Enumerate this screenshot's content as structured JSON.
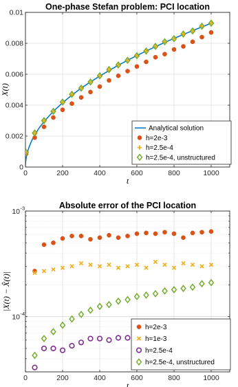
{
  "chart_data": [
    {
      "type": "scatter",
      "title": "One-phase Stefan problem: PCI location",
      "xlabel": "t",
      "ylabel": "X(t)",
      "xlim": [
        0,
        1100
      ],
      "ylim": [
        0,
        0.01
      ],
      "xticks": [
        "0",
        "200",
        "400",
        "600",
        "800",
        "1000"
      ],
      "yticks": [
        "0",
        "0.002",
        "0.004",
        "0.006",
        "0.008",
        "0.01"
      ],
      "grid": true,
      "legend_position": "bottom-right",
      "series": [
        {
          "name": "Analytical solution",
          "kind": "line",
          "color": "#0072BD",
          "x": [
            0,
            1,
            3,
            6,
            10,
            20,
            35,
            50,
            75,
            100,
            150,
            200,
            250,
            300,
            350,
            400,
            450,
            500,
            550,
            600,
            650,
            700,
            750,
            800,
            850,
            900,
            950,
            1000,
            1010
          ],
          "y": [
            0,
            0.000295,
            0.00051,
            0.00072,
            0.00093,
            0.00131,
            0.00174,
            0.00208,
            0.00255,
            0.00294,
            0.0036,
            0.00416,
            0.00465,
            0.0051,
            0.0055,
            0.00588,
            0.00624,
            0.00658,
            0.0069,
            0.00721,
            0.0075,
            0.00778,
            0.00806,
            0.00832,
            0.00857,
            0.00882,
            0.00906,
            0.0093,
            0.00934
          ]
        },
        {
          "name": "h=2e-3",
          "marker": "circle-filled",
          "color": "#D95319",
          "x": [
            3,
            50,
            100,
            150,
            200,
            250,
            300,
            350,
            400,
            450,
            500,
            550,
            600,
            650,
            700,
            750,
            800,
            850,
            900,
            950,
            1000
          ],
          "y": [
            0.00085,
            0.0019,
            0.0026,
            0.0032,
            0.0037,
            0.0041,
            0.0045,
            0.00485,
            0.0052,
            0.0056,
            0.0059,
            0.0062,
            0.0065,
            0.0068,
            0.0071,
            0.0073,
            0.0076,
            0.0078,
            0.0081,
            0.0084,
            0.0087
          ]
        },
        {
          "name": "h=2.5e-4",
          "marker": "plus",
          "color": "#EDB120",
          "x": [
            3,
            50,
            100,
            150,
            200,
            250,
            300,
            350,
            400,
            450,
            500,
            550,
            600,
            650,
            700,
            750,
            800,
            850,
            900,
            950,
            1000
          ],
          "y": [
            0.00095,
            0.0022,
            0.003,
            0.0036,
            0.0042,
            0.0047,
            0.0051,
            0.0055,
            0.0059,
            0.0063,
            0.0066,
            0.0069,
            0.0072,
            0.0075,
            0.0078,
            0.0081,
            0.0083,
            0.0086,
            0.0088,
            0.0091,
            0.0093
          ]
        },
        {
          "name": "h=2.5e-4, unstructured",
          "marker": "diamond-open",
          "color": "#77AC30",
          "x": [
            3,
            50,
            100,
            150,
            200,
            250,
            300,
            350,
            400,
            450,
            500,
            550,
            600,
            650,
            700,
            750,
            800,
            850,
            900,
            950,
            1000
          ],
          "y": [
            0.00095,
            0.0022,
            0.003,
            0.0036,
            0.0042,
            0.0047,
            0.0051,
            0.0055,
            0.0059,
            0.0063,
            0.0066,
            0.0069,
            0.0072,
            0.0075,
            0.0078,
            0.0081,
            0.0083,
            0.0086,
            0.0088,
            0.0091,
            0.0093
          ]
        }
      ]
    },
    {
      "type": "scatter",
      "title": "Absolute error of the PCI location",
      "xlabel": "t",
      "ylabel": "|X(t) − X̂(t)|",
      "xlim": [
        0,
        1100
      ],
      "ylim": [
        3e-05,
        0.001
      ],
      "yscale": "log",
      "xticks": [
        "0",
        "200",
        "400",
        "600",
        "800",
        "1000"
      ],
      "yticks": [
        {
          "base": "10",
          "exp": "-4",
          "value": 0.0001
        },
        {
          "base": "10",
          "exp": "-3",
          "value": 0.001
        }
      ],
      "grid": true,
      "legend_position": "bottom-right",
      "series": [
        {
          "name": "h=2e-3",
          "marker": "circle-filled",
          "color": "#D95319",
          "x": [
            50,
            100,
            150,
            200,
            250,
            300,
            350,
            400,
            450,
            500,
            550,
            600,
            650,
            700,
            750,
            800,
            850,
            900,
            950,
            1000
          ],
          "y": [
            0.00027,
            0.00048,
            0.0005,
            0.00055,
            0.00058,
            0.00058,
            0.00054,
            0.00056,
            0.00059,
            0.00056,
            0.00058,
            0.00061,
            0.00062,
            0.00061,
            0.00063,
            0.00061,
            0.00056,
            0.00062,
            0.00063,
            0.00064
          ]
        },
        {
          "name": "h=1e-3",
          "marker": "cross",
          "color": "#EDB120",
          "x": [
            50,
            100,
            150,
            200,
            250,
            300,
            350,
            400,
            450,
            500,
            550,
            600,
            650,
            700,
            750,
            800,
            850,
            900,
            950,
            1000
          ],
          "y": [
            0.00026,
            0.00027,
            0.00028,
            0.00029,
            0.0003,
            0.00032,
            0.00031,
            0.0003,
            0.00031,
            0.00029,
            0.0003,
            0.00031,
            0.00029,
            0.00033,
            0.00031,
            0.00029,
            0.00032,
            0.00031,
            0.0003,
            0.00031
          ]
        },
        {
          "name": "h=2.5e-4",
          "marker": "circle-open",
          "color": "#7E2F8E",
          "x": [
            50,
            100,
            150,
            200,
            250,
            300,
            350,
            400,
            450,
            500,
            550,
            600,
            650,
            700,
            750,
            800,
            850,
            900,
            950,
            1000
          ],
          "y": [
            3.3e-05,
            5e-05,
            5e-05,
            4.8e-05,
            5.3e-05,
            5.7e-05,
            6.2e-05,
            6.2e-05,
            6e-05,
            6.3e-05,
            6.3e-05,
            6.2e-05,
            6.6e-05,
            6.5e-05,
            6.7e-05,
            6.7e-05,
            6.7e-05,
            6.7e-05,
            6.8e-05,
            6.8e-05
          ]
        },
        {
          "name": "h=2.5e-4, unstructured",
          "marker": "diamond-open",
          "color": "#77AC30",
          "x": [
            50,
            100,
            150,
            200,
            250,
            300,
            350,
            400,
            450,
            500,
            550,
            600,
            650,
            700,
            750,
            800,
            850,
            900,
            950,
            1000
          ],
          "y": [
            4.3e-05,
            6.2e-05,
            7.2e-05,
            8.3e-05,
            9.5e-05,
            0.000105,
            0.000115,
            0.000125,
            0.00013,
            0.00014,
            0.000145,
            0.000155,
            0.00016,
            0.000165,
            0.000175,
            0.00018,
            0.000185,
            0.00019,
            0.000205,
            0.00021
          ]
        }
      ]
    }
  ]
}
